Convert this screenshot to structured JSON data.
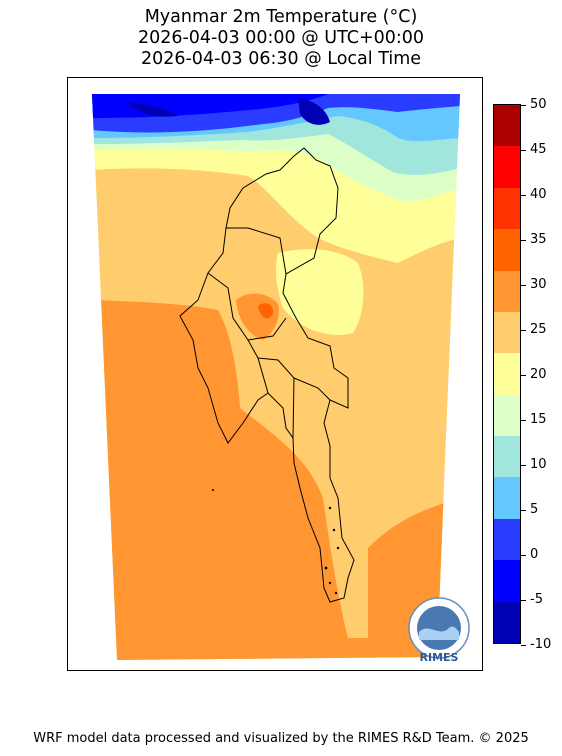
{
  "title": {
    "line1": "Myanmar 2m Temperature (°C)",
    "line2": "2026-04-03 00:00 @ UTC+00:00",
    "line3": "2026-04-03 06:30 @ Local Time"
  },
  "colorbar": {
    "ticks": [
      "-10",
      "-5",
      "0",
      "5",
      "10",
      "15",
      "20",
      "25",
      "30",
      "35",
      "40",
      "45",
      "50"
    ],
    "bins": [
      {
        "from": -10,
        "to": -5,
        "color": "#0000b4"
      },
      {
        "from": -5,
        "to": 0,
        "color": "#0000ff"
      },
      {
        "from": 0,
        "to": 5,
        "color": "#2a3cff"
      },
      {
        "from": 5,
        "to": 10,
        "color": "#64c8ff"
      },
      {
        "from": 10,
        "to": 15,
        "color": "#a0e6dc"
      },
      {
        "from": 15,
        "to": 20,
        "color": "#dcffc8"
      },
      {
        "from": 20,
        "to": 25,
        "color": "#ffff9a"
      },
      {
        "from": 25,
        "to": 30,
        "color": "#ffcc6e"
      },
      {
        "from": 30,
        "to": 35,
        "color": "#ff9632"
      },
      {
        "from": 35,
        "to": 40,
        "color": "#ff6400"
      },
      {
        "from": 40,
        "to": 45,
        "color": "#ff3200"
      },
      {
        "from": 45,
        "to": 50,
        "color": "#ff0000"
      },
      {
        "from": 50,
        "to": 55,
        "color": "#aa0000"
      }
    ]
  },
  "logo": {
    "text": "RIMES"
  },
  "footer": "WRF model data processed and visualized by the RIMES R&D Team. © 2025"
}
